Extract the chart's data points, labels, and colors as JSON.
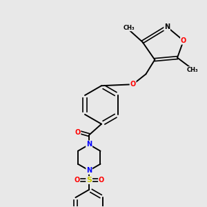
{
  "background_color": "#e8e8e8",
  "bond_color": "#000000",
  "atom_colors": {
    "N": "#0000ff",
    "O": "#ff0000",
    "S": "#cccc00",
    "C": "#000000"
  },
  "figsize": [
    3.0,
    3.0
  ],
  "dpi": 100
}
